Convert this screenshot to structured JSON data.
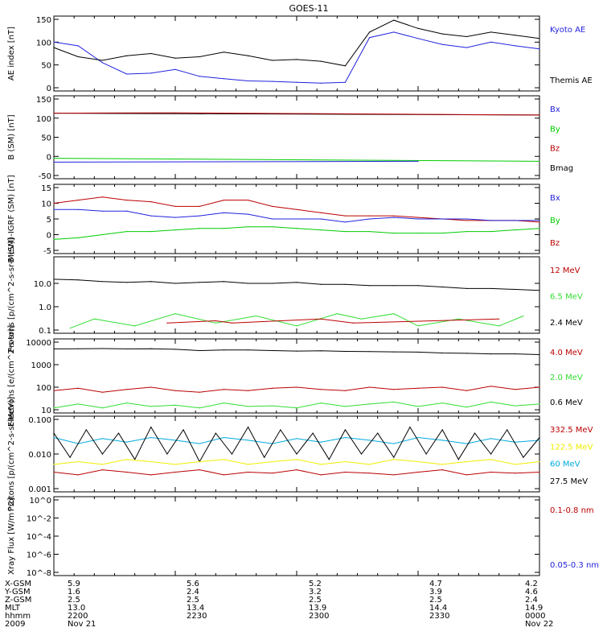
{
  "title": "GOES-11",
  "colors": {
    "black": "#000000",
    "blue": "#2222dd",
    "red": "#bb0000",
    "green": "#00cc00",
    "cyan": "#00aadd",
    "yellow": "#eeee00",
    "lightgreen": "#33dd33"
  },
  "footer": {
    "row_labels": [
      "X-GSM",
      "Y-GSM",
      "Z-GSM",
      "MLT",
      "hhmm",
      "2009"
    ],
    "columns": [
      [
        "5.9",
        "1.6",
        "2.5",
        "13.0",
        "2200",
        "Nov 21"
      ],
      [
        "5.6",
        "2.4",
        "2.5",
        "13.4",
        "2230",
        ""
      ],
      [
        "5.2",
        "3.2",
        "2.5",
        "13.9",
        "2300",
        ""
      ],
      [
        "4.7",
        "3.9",
        "2.5",
        "14.4",
        "2330",
        ""
      ],
      [
        "4.2",
        "4.6",
        "2.4",
        "14.9",
        "0000",
        "Nov 22"
      ]
    ]
  },
  "chart_data": [
    {
      "type": "line",
      "ylabel": "AE index [nT]",
      "ylim": [
        0,
        150
      ],
      "scale": "linear",
      "yticks": [
        "0",
        "50",
        "100",
        "150"
      ],
      "legend": [
        {
          "name": "Kyoto AE",
          "color": "blue"
        },
        {
          "name": "Themis AE",
          "color": "black"
        }
      ],
      "series": [
        {
          "name": "Kyoto AE",
          "color": "blue",
          "x": [
            0,
            3,
            6,
            9,
            12,
            15,
            18,
            21,
            24,
            27,
            30,
            33,
            36,
            39,
            42,
            45,
            48,
            51,
            54,
            57,
            60
          ],
          "values": [
            100,
            92,
            55,
            30,
            32,
            40,
            25,
            20,
            15,
            14,
            12,
            10,
            12,
            110,
            122,
            108,
            95,
            88,
            100,
            92,
            85
          ]
        },
        {
          "name": "Themis AE",
          "color": "black",
          "x": [
            0,
            3,
            6,
            9,
            12,
            15,
            18,
            21,
            24,
            27,
            30,
            33,
            36,
            39,
            42,
            45,
            48,
            51,
            54,
            57,
            60
          ],
          "values": [
            88,
            68,
            60,
            70,
            75,
            65,
            68,
            78,
            70,
            60,
            62,
            58,
            48,
            122,
            148,
            130,
            118,
            112,
            122,
            115,
            108
          ]
        }
      ]
    },
    {
      "type": "line",
      "ylabel": "B (SM) [nT]",
      "ylim": [
        -50,
        150
      ],
      "scale": "linear",
      "yticks": [
        "-50",
        "0",
        "50",
        "100",
        "150"
      ],
      "legend": [
        {
          "name": "Bx",
          "color": "blue"
        },
        {
          "name": "By",
          "color": "green"
        },
        {
          "name": "Bz",
          "color": "red"
        },
        {
          "name": "Bmag",
          "color": "black"
        }
      ],
      "series": [
        {
          "name": "Bmag",
          "color": "black",
          "x": [
            0,
            60
          ],
          "values": [
            113,
            108
          ]
        },
        {
          "name": "Bz",
          "color": "red",
          "x": [
            0,
            15,
            30,
            45,
            60
          ],
          "values": [
            113,
            114,
            112,
            110,
            108
          ]
        },
        {
          "name": "By",
          "color": "green",
          "x": [
            0,
            60
          ],
          "values": [
            -5,
            -13
          ]
        },
        {
          "name": "Bx",
          "color": "blue",
          "x": [
            0,
            45
          ],
          "values": [
            -15,
            -13
          ]
        }
      ]
    },
    {
      "type": "line",
      "ylabel": "B (SM)-IGRF (SM) [nT]",
      "ylim": [
        -5,
        15
      ],
      "scale": "linear",
      "yticks": [
        "-5",
        "0",
        "5",
        "10",
        "15"
      ],
      "legend": [
        {
          "name": "Bx",
          "color": "blue"
        },
        {
          "name": "By",
          "color": "green"
        },
        {
          "name": "Bz",
          "color": "red"
        }
      ],
      "series": [
        {
          "name": "Bz",
          "color": "red",
          "x": [
            0,
            3,
            6,
            9,
            12,
            15,
            18,
            21,
            24,
            27,
            30,
            33,
            36,
            39,
            42,
            45,
            48,
            51,
            54,
            57,
            60
          ],
          "values": [
            10,
            11,
            12,
            11,
            10.5,
            9,
            9,
            11,
            11,
            9,
            8,
            7,
            6,
            6,
            6,
            5.5,
            5,
            4.5,
            4.5,
            4.5,
            4
          ]
        },
        {
          "name": "Bx",
          "color": "blue",
          "x": [
            0,
            3,
            6,
            9,
            12,
            15,
            18,
            21,
            24,
            27,
            30,
            33,
            36,
            39,
            42,
            45,
            48,
            51,
            54,
            57,
            60
          ],
          "values": [
            8,
            8,
            7.5,
            7.5,
            6,
            5.5,
            6,
            7,
            6.5,
            5,
            5,
            5,
            4,
            5,
            5.5,
            5,
            5,
            5,
            4.5,
            4.5,
            4.5
          ]
        },
        {
          "name": "By",
          "color": "green",
          "x": [
            0,
            3,
            6,
            9,
            12,
            15,
            18,
            21,
            24,
            27,
            30,
            33,
            36,
            39,
            42,
            45,
            48,
            51,
            54,
            57,
            60
          ],
          "values": [
            -1.5,
            -1,
            0,
            1,
            1,
            1.5,
            2,
            2,
            2.5,
            2.5,
            2,
            1.5,
            1,
            1,
            0.5,
            0.5,
            0.5,
            1,
            1,
            1.5,
            2
          ]
        }
      ]
    },
    {
      "type": "line",
      "ylabel": "Protons [p/(cm^2-s-sr-MeV)]",
      "ylim": [
        0.1,
        100
      ],
      "scale": "log",
      "yticks": [
        "0.1",
        "1.0",
        "10.0"
      ],
      "legend": [
        {
          "name": "12 MeV",
          "color": "red"
        },
        {
          "name": "6.5 MeV",
          "color": "lightgreen"
        },
        {
          "name": "2.4 MeV",
          "color": "black"
        }
      ],
      "series": [
        {
          "name": "2.4 MeV",
          "color": "black",
          "x": [
            0,
            3,
            6,
            9,
            12,
            15,
            18,
            21,
            24,
            27,
            30,
            33,
            36,
            39,
            42,
            45,
            48,
            51,
            54,
            57,
            60
          ],
          "values": [
            15,
            14,
            12,
            11,
            12,
            10,
            11,
            12,
            10,
            10,
            11,
            9,
            9,
            8,
            8,
            8,
            7,
            6,
            6,
            5.5,
            5
          ]
        },
        {
          "name": "6.5 MeV",
          "color": "lightgreen",
          "x": [
            2,
            5,
            10,
            15,
            20,
            25,
            30,
            35,
            38,
            42,
            45,
            50,
            55,
            58
          ],
          "values": [
            0.12,
            0.3,
            0.15,
            0.5,
            0.2,
            0.4,
            0.15,
            0.5,
            0.3,
            0.5,
            0.15,
            0.3,
            0.15,
            0.4
          ]
        },
        {
          "name": "12 MeV",
          "color": "red",
          "x": [
            14,
            20,
            22,
            33,
            37,
            55
          ],
          "values": [
            0.2,
            0.25,
            0.2,
            0.3,
            0.2,
            0.3
          ]
        }
      ]
    },
    {
      "type": "line",
      "ylabel": "Electrons [e/(cm^2-s-sr)]",
      "ylim": [
        10,
        10000
      ],
      "scale": "log",
      "yticks": [
        "10",
        "100",
        "1000",
        "10000"
      ],
      "legend": [
        {
          "name": "4.0 MeV",
          "color": "red"
        },
        {
          "name": "2.0 MeV",
          "color": "lightgreen"
        },
        {
          "name": "0.6 MeV",
          "color": "black"
        }
      ],
      "series": [
        {
          "name": "0.6 MeV",
          "color": "black",
          "x": [
            0,
            3,
            6,
            9,
            12,
            15,
            18,
            21,
            24,
            27,
            30,
            33,
            36,
            39,
            42,
            45,
            48,
            51,
            54,
            57,
            60
          ],
          "values": [
            5000,
            5100,
            5200,
            5000,
            5100,
            4800,
            4200,
            4500,
            4500,
            4200,
            4000,
            4100,
            3900,
            3800,
            3700,
            3600,
            3300,
            3200,
            3000,
            3000,
            2800
          ]
        },
        {
          "name": "4.0 MeV",
          "color": "red",
          "x": [
            0,
            3,
            6,
            9,
            12,
            15,
            18,
            21,
            24,
            27,
            30,
            33,
            36,
            39,
            42,
            45,
            48,
            51,
            54,
            57,
            60
          ],
          "values": [
            70,
            90,
            60,
            80,
            100,
            70,
            60,
            80,
            70,
            90,
            100,
            80,
            70,
            100,
            80,
            90,
            100,
            70,
            110,
            80,
            100
          ]
        },
        {
          "name": "2.0 MeV",
          "color": "lightgreen",
          "x": [
            0,
            3,
            6,
            9,
            12,
            15,
            18,
            21,
            24,
            27,
            30,
            33,
            36,
            39,
            42,
            45,
            48,
            51,
            54,
            57,
            60
          ],
          "values": [
            12,
            18,
            12,
            20,
            14,
            16,
            12,
            20,
            14,
            15,
            12,
            20,
            14,
            18,
            22,
            14,
            20,
            13,
            22,
            15,
            18
          ]
        }
      ]
    },
    {
      "type": "line",
      "ylabel": "Protons [p/(cm^2-s-sr-MeV)]",
      "ylim": [
        0.001,
        0.1
      ],
      "scale": "log",
      "yticks": [
        "0.001",
        "0.010",
        "0.100"
      ],
      "legend": [
        {
          "name": "332.5 MeV",
          "color": "red"
        },
        {
          "name": "122.5 MeV",
          "color": "yellow"
        },
        {
          "name": "60 MeV",
          "color": "cyan"
        },
        {
          "name": "27.5 MeV",
          "color": "black"
        }
      ],
      "series": [
        {
          "name": "60 MeV",
          "color": "cyan",
          "x": [
            0,
            3,
            6,
            9,
            12,
            15,
            18,
            21,
            24,
            27,
            30,
            33,
            36,
            39,
            42,
            45,
            48,
            51,
            54,
            57,
            60
          ],
          "values": [
            0.03,
            0.02,
            0.028,
            0.022,
            0.03,
            0.025,
            0.02,
            0.03,
            0.025,
            0.02,
            0.028,
            0.022,
            0.03,
            0.025,
            0.02,
            0.03,
            0.025,
            0.02,
            0.028,
            0.022,
            0.025
          ]
        },
        {
          "name": "27.5 MeV",
          "color": "black",
          "x": [
            0,
            2,
            4,
            6,
            8,
            10,
            12,
            14,
            16,
            18,
            20,
            22,
            24,
            26,
            28,
            30,
            32,
            34,
            36,
            38,
            40,
            42,
            44,
            46,
            48,
            50,
            52,
            54,
            56,
            58,
            60
          ],
          "values": [
            0.04,
            0.008,
            0.05,
            0.01,
            0.04,
            0.007,
            0.06,
            0.01,
            0.05,
            0.006,
            0.04,
            0.01,
            0.06,
            0.008,
            0.05,
            0.01,
            0.04,
            0.007,
            0.05,
            0.01,
            0.04,
            0.008,
            0.06,
            0.01,
            0.05,
            0.007,
            0.04,
            0.01,
            0.05,
            0.008,
            0.03
          ]
        },
        {
          "name": "122.5 MeV",
          "color": "yellow",
          "x": [
            0,
            3,
            6,
            9,
            12,
            15,
            18,
            21,
            24,
            27,
            30,
            33,
            36,
            39,
            42,
            45,
            48,
            51,
            54,
            57,
            60
          ],
          "values": [
            0.005,
            0.006,
            0.005,
            0.007,
            0.006,
            0.005,
            0.006,
            0.007,
            0.005,
            0.006,
            0.007,
            0.005,
            0.006,
            0.005,
            0.007,
            0.006,
            0.005,
            0.006,
            0.007,
            0.005,
            0.006
          ]
        },
        {
          "name": "332.5 MeV",
          "color": "red",
          "x": [
            0,
            3,
            6,
            9,
            12,
            15,
            18,
            21,
            24,
            27,
            30,
            33,
            36,
            39,
            42,
            45,
            48,
            51,
            54,
            57,
            60
          ],
          "values": [
            0.003,
            0.0025,
            0.0035,
            0.003,
            0.0025,
            0.003,
            0.0035,
            0.0025,
            0.003,
            0.0028,
            0.0035,
            0.0025,
            0.003,
            0.0028,
            0.0025,
            0.003,
            0.0035,
            0.0025,
            0.003,
            0.0028,
            0.003
          ]
        }
      ]
    },
    {
      "type": "line",
      "ylabel": "Xray Flux [W/m^2]",
      "ylim": [
        1e-08,
        1
      ],
      "scale": "log",
      "yticks": [
        "10^-8",
        "10^-6",
        "10^-4",
        "10^-2",
        "10^0"
      ],
      "legend": [
        {
          "name": "0.1-0.8 nm",
          "color": "red"
        },
        {
          "name": "0.05-0.3 nm",
          "color": "blue"
        }
      ],
      "series": []
    }
  ]
}
